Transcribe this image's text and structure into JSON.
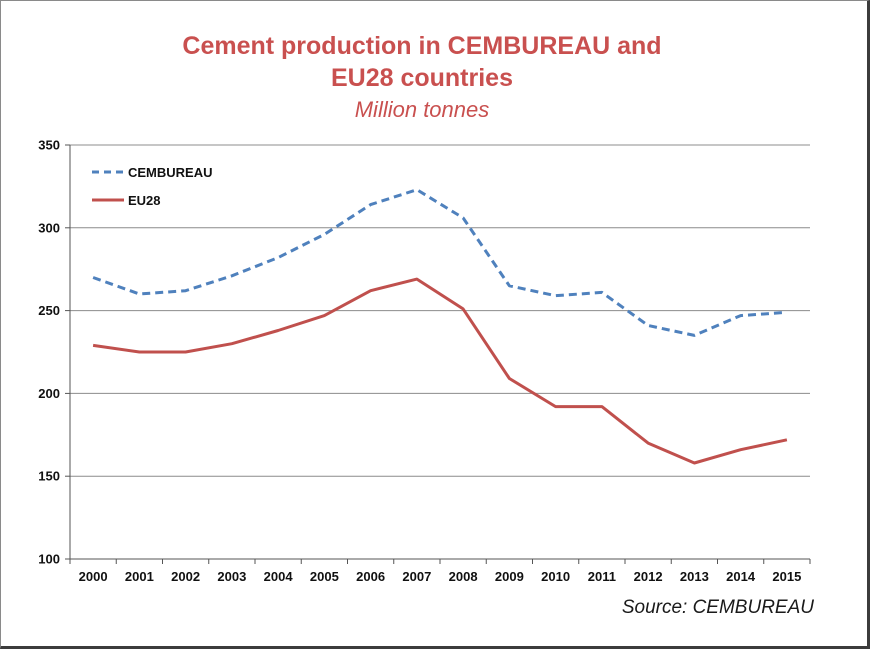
{
  "chart_data": {
    "type": "line",
    "title_line1": "Cement production in CEMBUREAU and",
    "title_line2": "EU28 countries",
    "subtitle": "Million tonnes",
    "source": "Source: CEMBUREAU",
    "xlabel": "",
    "ylabel": "",
    "ylim": [
      100,
      350
    ],
    "yticks": [
      100,
      150,
      200,
      250,
      300,
      350
    ],
    "grid": true,
    "legend_position": "top-left",
    "categories": [
      "2000",
      "2001",
      "2002",
      "2003",
      "2004",
      "2005",
      "2006",
      "2007",
      "2008",
      "2009",
      "2010",
      "2011",
      "2012",
      "2013",
      "2014",
      "2015"
    ],
    "series": [
      {
        "name": "CEMBUREAU",
        "style": "dashed",
        "color": "#4f81bd",
        "values": [
          270,
          260,
          262,
          271,
          282,
          296,
          314,
          323,
          306,
          265,
          259,
          261,
          241,
          235,
          247,
          249
        ]
      },
      {
        "name": "EU28",
        "style": "solid",
        "color": "#c0504d",
        "values": [
          229,
          225,
          225,
          230,
          238,
          247,
          262,
          269,
          251,
          209,
          192,
          192,
          170,
          158,
          166,
          172
        ]
      }
    ]
  }
}
